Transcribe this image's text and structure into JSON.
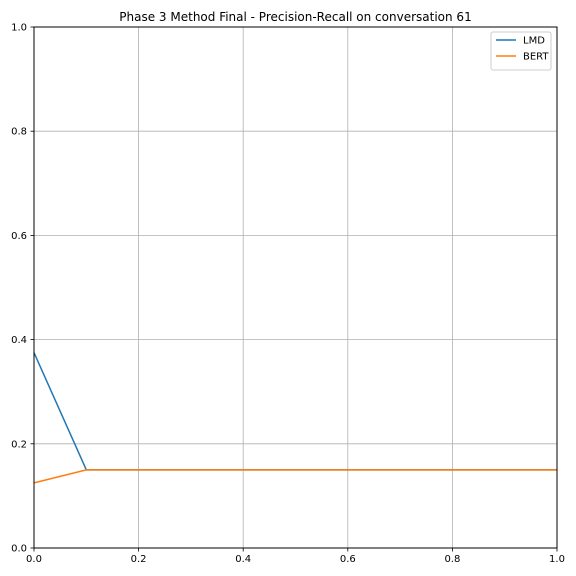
{
  "chart_data": {
    "type": "line",
    "title": "Phase 3 Method Final - Precision-Recall on conversation 61",
    "xlabel": "",
    "ylabel": "",
    "xlim": [
      0,
      1
    ],
    "ylim": [
      0,
      1
    ],
    "xticks": [
      "0.0",
      "0.2",
      "0.4",
      "0.6",
      "0.8",
      "1.0"
    ],
    "yticks": [
      "0.0",
      "0.2",
      "0.4",
      "0.6",
      "0.8",
      "1.0"
    ],
    "grid": true,
    "legend_position": "top-right",
    "series": [
      {
        "name": "LMD",
        "color": "#1f77b4",
        "points": [
          [
            0.0,
            0.375
          ],
          [
            0.1,
            0.15
          ],
          [
            1.0,
            0.15
          ]
        ]
      },
      {
        "name": "BERT",
        "color": "#ff7f0e",
        "points": [
          [
            0.0,
            0.125
          ],
          [
            0.1,
            0.15
          ],
          [
            1.0,
            0.15
          ]
        ]
      }
    ]
  }
}
